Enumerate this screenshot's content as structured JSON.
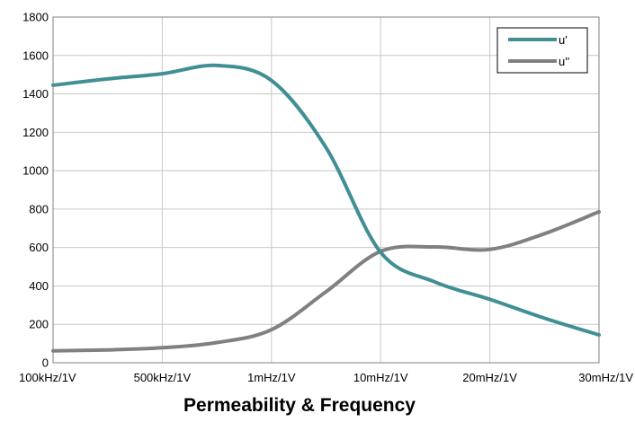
{
  "chart_data": {
    "type": "line",
    "title": "Permeability & Frequency",
    "xlabel": "",
    "ylabel": "",
    "categories": [
      "100kHz/1V",
      "500kHz/1V",
      "1mHz/1V",
      "10mHz/1V",
      "20mHz/1V",
      "30mHz/1V"
    ],
    "ylim": [
      0,
      1800
    ],
    "yticks": [
      0,
      200,
      400,
      600,
      800,
      1000,
      1200,
      1400,
      1600,
      1800
    ],
    "grid": true,
    "legend_position": "top-right",
    "series": [
      {
        "name": "u'",
        "color": "#3f8f94",
        "points": [
          [
            0,
            1445
          ],
          [
            0.5,
            1478
          ],
          [
            1,
            1505
          ],
          [
            1.5,
            1548
          ],
          [
            2,
            1470
          ],
          [
            2.5,
            1120
          ],
          [
            3,
            575
          ],
          [
            3.5,
            420
          ],
          [
            4,
            330
          ],
          [
            4.5,
            232
          ],
          [
            5,
            145
          ]
        ]
      },
      {
        "name": "u''",
        "color": "#808080",
        "points": [
          [
            0,
            62
          ],
          [
            0.5,
            67
          ],
          [
            1,
            78
          ],
          [
            1.5,
            105
          ],
          [
            2,
            172
          ],
          [
            2.5,
            370
          ],
          [
            3,
            580
          ],
          [
            3.5,
            603
          ],
          [
            4,
            590
          ],
          [
            4.5,
            672
          ],
          [
            5,
            786
          ]
        ]
      }
    ]
  }
}
